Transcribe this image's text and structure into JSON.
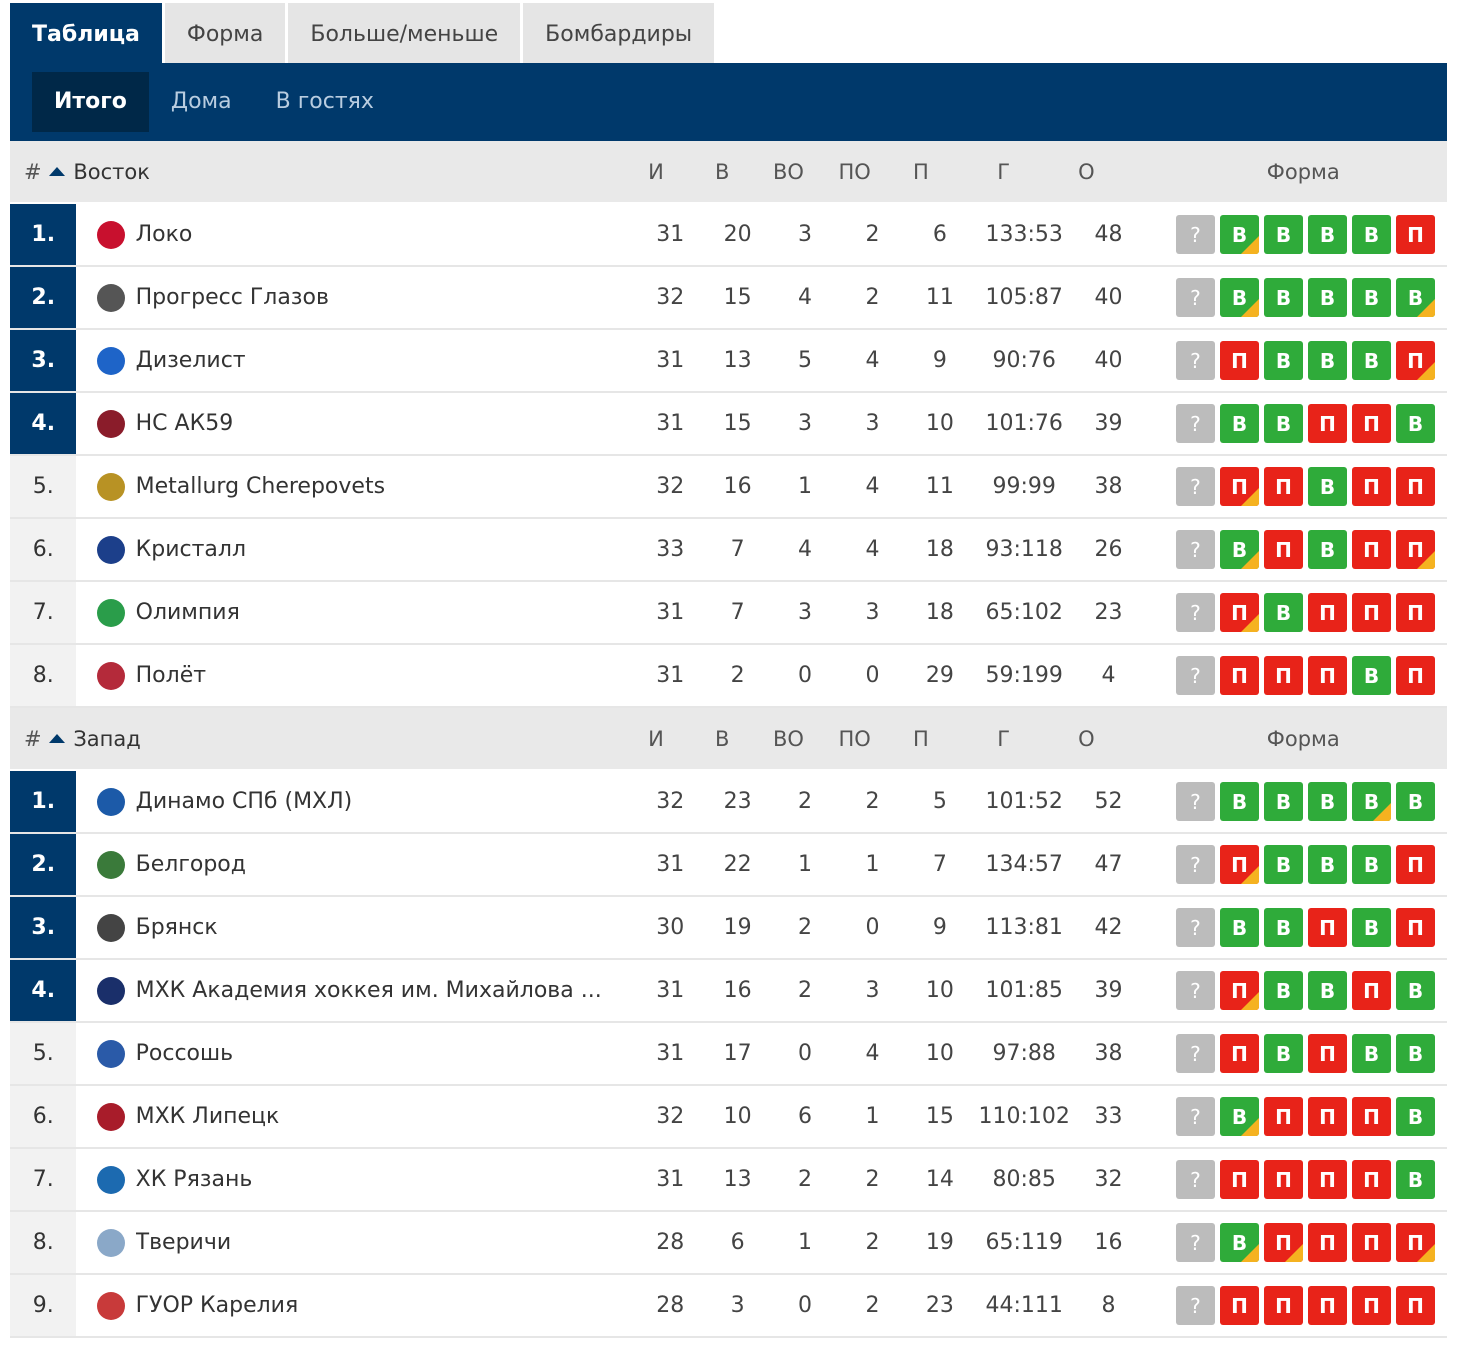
{
  "tabs": [
    "Таблица",
    "Форма",
    "Больше/меньше",
    "Бомбардиры"
  ],
  "subtabs": [
    "Итого",
    "Дома",
    "В гостях"
  ],
  "columns": {
    "pos": "#",
    "games": "И",
    "wins": "В",
    "ot_wins": "ВО",
    "ot_losses": "ПО",
    "losses": "П",
    "goals": "Г",
    "points": "О",
    "form": "Форма"
  },
  "form_unknown": "?",
  "groups": [
    {
      "name": "Восток",
      "teams": [
        {
          "pos": "1.",
          "name": "Локо",
          "logo_color": "#c8102e",
          "g": "31",
          "w": "20",
          "ow": "3",
          "ol": "2",
          "l": "6",
          "goals": "133:53",
          "pts": "48",
          "q": true,
          "form": [
            {
              "r": "В",
              "ot": true
            },
            {
              "r": "В",
              "ot": false
            },
            {
              "r": "В",
              "ot": false
            },
            {
              "r": "В",
              "ot": false
            },
            {
              "r": "П",
              "ot": false
            }
          ]
        },
        {
          "pos": "2.",
          "name": "Прогресс Глазов",
          "logo_color": "#555555",
          "g": "32",
          "w": "15",
          "ow": "4",
          "ol": "2",
          "l": "11",
          "goals": "105:87",
          "pts": "40",
          "q": true,
          "form": [
            {
              "r": "В",
              "ot": true
            },
            {
              "r": "В",
              "ot": false
            },
            {
              "r": "В",
              "ot": false
            },
            {
              "r": "В",
              "ot": false
            },
            {
              "r": "В",
              "ot": true
            }
          ]
        },
        {
          "pos": "3.",
          "name": "Дизелист",
          "logo_color": "#1e64c8",
          "g": "31",
          "w": "13",
          "ow": "5",
          "ol": "4",
          "l": "9",
          "goals": "90:76",
          "pts": "40",
          "q": true,
          "form": [
            {
              "r": "П",
              "ot": false
            },
            {
              "r": "В",
              "ot": false
            },
            {
              "r": "В",
              "ot": false
            },
            {
              "r": "В",
              "ot": false
            },
            {
              "r": "П",
              "ot": true
            }
          ]
        },
        {
          "pos": "4.",
          "name": "НС АК59",
          "logo_color": "#8a1c2a",
          "g": "31",
          "w": "15",
          "ow": "3",
          "ol": "3",
          "l": "10",
          "goals": "101:76",
          "pts": "39",
          "q": true,
          "form": [
            {
              "r": "В",
              "ot": false
            },
            {
              "r": "В",
              "ot": false
            },
            {
              "r": "П",
              "ot": false
            },
            {
              "r": "П",
              "ot": false
            },
            {
              "r": "В",
              "ot": false
            }
          ]
        },
        {
          "pos": "5.",
          "name": "Metallurg Cherepovets",
          "logo_color": "#b89224",
          "g": "32",
          "w": "16",
          "ow": "1",
          "ol": "4",
          "l": "11",
          "goals": "99:99",
          "pts": "38",
          "q": false,
          "form": [
            {
              "r": "П",
              "ot": true
            },
            {
              "r": "П",
              "ot": false
            },
            {
              "r": "В",
              "ot": false
            },
            {
              "r": "П",
              "ot": false
            },
            {
              "r": "П",
              "ot": false
            }
          ]
        },
        {
          "pos": "6.",
          "name": "Кристалл",
          "logo_color": "#1c3f8a",
          "g": "33",
          "w": "7",
          "ow": "4",
          "ol": "4",
          "l": "18",
          "goals": "93:118",
          "pts": "26",
          "q": false,
          "form": [
            {
              "r": "В",
              "ot": true
            },
            {
              "r": "П",
              "ot": false
            },
            {
              "r": "В",
              "ot": false
            },
            {
              "r": "П",
              "ot": false
            },
            {
              "r": "П",
              "ot": true
            }
          ]
        },
        {
          "pos": "7.",
          "name": "Олимпия",
          "logo_color": "#2a9d4a",
          "g": "31",
          "w": "7",
          "ow": "3",
          "ol": "3",
          "l": "18",
          "goals": "65:102",
          "pts": "23",
          "q": false,
          "form": [
            {
              "r": "П",
              "ot": true
            },
            {
              "r": "В",
              "ot": false
            },
            {
              "r": "П",
              "ot": false
            },
            {
              "r": "П",
              "ot": false
            },
            {
              "r": "П",
              "ot": false
            }
          ]
        },
        {
          "pos": "8.",
          "name": "Полёт",
          "logo_color": "#b42a3a",
          "g": "31",
          "w": "2",
          "ow": "0",
          "ol": "0",
          "l": "29",
          "goals": "59:199",
          "pts": "4",
          "q": false,
          "form": [
            {
              "r": "П",
              "ot": false
            },
            {
              "r": "П",
              "ot": false
            },
            {
              "r": "П",
              "ot": false
            },
            {
              "r": "В",
              "ot": false
            },
            {
              "r": "П",
              "ot": false
            }
          ]
        }
      ]
    },
    {
      "name": "Запад",
      "teams": [
        {
          "pos": "1.",
          "name": "Динамо СПб (МХЛ)",
          "logo_color": "#1c5aa8",
          "g": "32",
          "w": "23",
          "ow": "2",
          "ol": "2",
          "l": "5",
          "goals": "101:52",
          "pts": "52",
          "q": true,
          "form": [
            {
              "r": "В",
              "ot": false
            },
            {
              "r": "В",
              "ot": false
            },
            {
              "r": "В",
              "ot": false
            },
            {
              "r": "В",
              "ot": true
            },
            {
              "r": "В",
              "ot": false
            }
          ]
        },
        {
          "pos": "2.",
          "name": "Белгород",
          "logo_color": "#3a7a3a",
          "g": "31",
          "w": "22",
          "ow": "1",
          "ol": "1",
          "l": "7",
          "goals": "134:57",
          "pts": "47",
          "q": true,
          "form": [
            {
              "r": "П",
              "ot": true
            },
            {
              "r": "В",
              "ot": false
            },
            {
              "r": "В",
              "ot": false
            },
            {
              "r": "В",
              "ot": false
            },
            {
              "r": "П",
              "ot": false
            }
          ]
        },
        {
          "pos": "3.",
          "name": "Брянск",
          "logo_color": "#444444",
          "g": "30",
          "w": "19",
          "ow": "2",
          "ol": "0",
          "l": "9",
          "goals": "113:81",
          "pts": "42",
          "q": true,
          "form": [
            {
              "r": "В",
              "ot": false
            },
            {
              "r": "В",
              "ot": false
            },
            {
              "r": "П",
              "ot": false
            },
            {
              "r": "В",
              "ot": false
            },
            {
              "r": "П",
              "ot": false
            }
          ]
        },
        {
          "pos": "4.",
          "name": "МХК Академия хоккея им. Михайлова ...",
          "logo_color": "#1a2f6a",
          "g": "31",
          "w": "16",
          "ow": "2",
          "ol": "3",
          "l": "10",
          "goals": "101:85",
          "pts": "39",
          "q": true,
          "form": [
            {
              "r": "П",
              "ot": true
            },
            {
              "r": "В",
              "ot": false
            },
            {
              "r": "В",
              "ot": false
            },
            {
              "r": "П",
              "ot": false
            },
            {
              "r": "В",
              "ot": false
            }
          ]
        },
        {
          "pos": "5.",
          "name": "Россошь",
          "logo_color": "#2a5aa8",
          "g": "31",
          "w": "17",
          "ow": "0",
          "ol": "4",
          "l": "10",
          "goals": "97:88",
          "pts": "38",
          "q": false,
          "form": [
            {
              "r": "П",
              "ot": false
            },
            {
              "r": "В",
              "ot": false
            },
            {
              "r": "П",
              "ot": false
            },
            {
              "r": "В",
              "ot": false
            },
            {
              "r": "В",
              "ot": false
            }
          ]
        },
        {
          "pos": "6.",
          "name": "МХК Липецк",
          "logo_color": "#a81c2a",
          "g": "32",
          "w": "10",
          "ow": "6",
          "ol": "1",
          "l": "15",
          "goals": "110:102",
          "pts": "33",
          "q": false,
          "form": [
            {
              "r": "В",
              "ot": true
            },
            {
              "r": "П",
              "ot": false
            },
            {
              "r": "П",
              "ot": false
            },
            {
              "r": "П",
              "ot": false
            },
            {
              "r": "В",
              "ot": false
            }
          ]
        },
        {
          "pos": "7.",
          "name": "ХК Рязань",
          "logo_color": "#1c6ab0",
          "g": "31",
          "w": "13",
          "ow": "2",
          "ol": "2",
          "l": "14",
          "goals": "80:85",
          "pts": "32",
          "q": false,
          "form": [
            {
              "r": "П",
              "ot": false
            },
            {
              "r": "П",
              "ot": false
            },
            {
              "r": "П",
              "ot": false
            },
            {
              "r": "П",
              "ot": false
            },
            {
              "r": "В",
              "ot": false
            }
          ]
        },
        {
          "pos": "8.",
          "name": "Тверичи",
          "logo_color": "#8aa8c8",
          "g": "28",
          "w": "6",
          "ow": "1",
          "ol": "2",
          "l": "19",
          "goals": "65:119",
          "pts": "16",
          "q": false,
          "form": [
            {
              "r": "В",
              "ot": true
            },
            {
              "r": "П",
              "ot": true
            },
            {
              "r": "П",
              "ot": false
            },
            {
              "r": "П",
              "ot": false
            },
            {
              "r": "П",
              "ot": true
            }
          ]
        },
        {
          "pos": "9.",
          "name": "ГУОР Карелия",
          "logo_color": "#c83a3a",
          "g": "28",
          "w": "3",
          "ow": "0",
          "ol": "2",
          "l": "23",
          "goals": "44:111",
          "pts": "8",
          "q": false,
          "form": [
            {
              "r": "П",
              "ot": false
            },
            {
              "r": "П",
              "ot": false
            },
            {
              "r": "П",
              "ot": false
            },
            {
              "r": "П",
              "ot": false
            },
            {
              "r": "П",
              "ot": false
            }
          ]
        }
      ]
    }
  ]
}
